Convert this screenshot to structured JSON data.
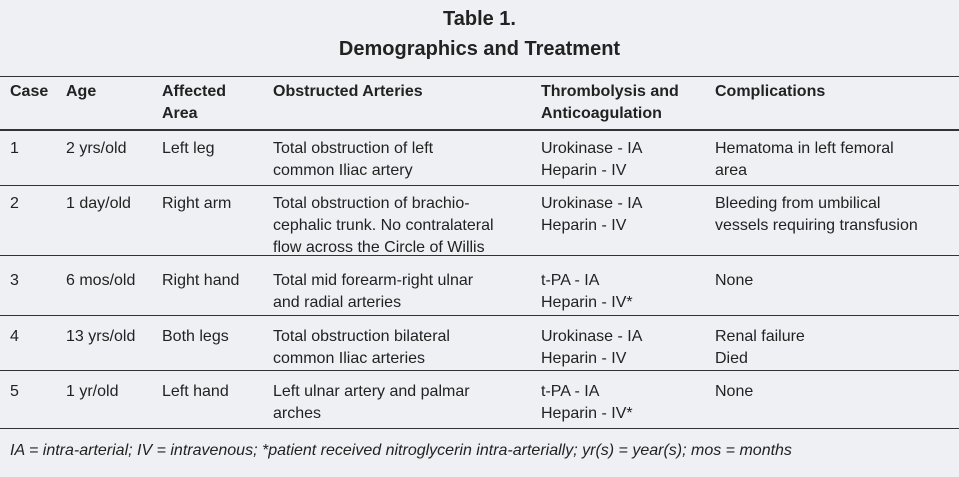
{
  "title": [
    "Table 1.",
    "Demographics and Treatment"
  ],
  "table": {
    "header": [
      [
        "Case"
      ],
      [
        "Age"
      ],
      [
        "Affected",
        "Area"
      ],
      [
        "Obstructed Arteries"
      ],
      [
        "Thrombolysis and",
        "Anticoagulation"
      ],
      [
        "Complications"
      ]
    ],
    "rows": [
      [
        [
          "1"
        ],
        [
          "2 yrs/old"
        ],
        [
          "Left leg"
        ],
        [
          "Total obstruction of left",
          "common Iliac artery"
        ],
        [
          "Urokinase - IA",
          "Heparin - IV"
        ],
        [
          "Hematoma in left femoral",
          "area"
        ]
      ],
      [
        [
          "2"
        ],
        [
          "1 day/old"
        ],
        [
          "Right arm"
        ],
        [
          "Total obstruction of brachio-",
          "cephalic trunk. No contralateral",
          "flow across the Circle of Willis"
        ],
        [
          "Urokinase - IA",
          "Heparin - IV"
        ],
        [
          "Bleeding from umbilical",
          "vessels requiring transfusion"
        ]
      ],
      [
        [
          "3"
        ],
        [
          "6 mos/old"
        ],
        [
          "Right hand"
        ],
        [
          "Total mid forearm-right ulnar",
          "and radial arteries"
        ],
        [
          "t-PA - IA",
          "Heparin - IV*"
        ],
        [
          "None"
        ]
      ],
      [
        [
          "4"
        ],
        [
          "13 yrs/old"
        ],
        [
          "Both legs"
        ],
        [
          "Total obstruction bilateral",
          "common Iliac arteries"
        ],
        [
          "Urokinase - IA",
          "Heparin - IV"
        ],
        [
          "Renal failure",
          "Died"
        ]
      ],
      [
        [
          "5"
        ],
        [
          "1 yr/old"
        ],
        [
          "Left hand"
        ],
        [
          "Left ulnar artery and palmar",
          "arches"
        ],
        [
          "t-PA - IA",
          "Heparin - IV*"
        ],
        [
          "None"
        ]
      ]
    ]
  },
  "footnote": "IA = intra-arterial; IV = intravenous; *patient received nitroglycerin intra-arterially; yr(s) = year(s); mos = months"
}
